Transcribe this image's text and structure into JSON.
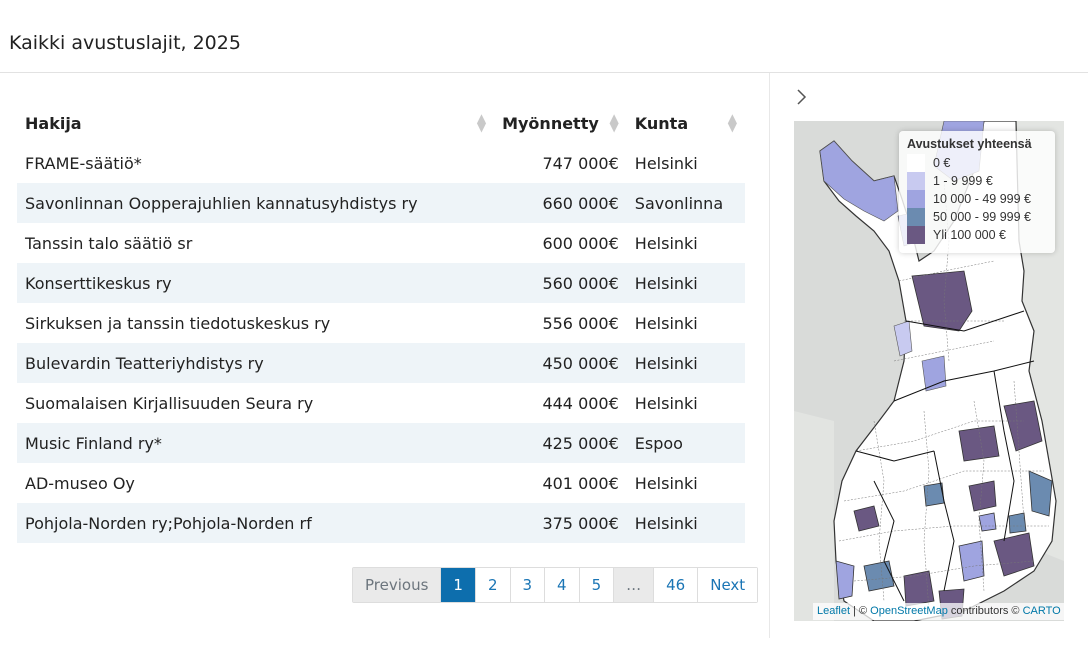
{
  "page": {
    "title": "Kaikki avustuslajit, 2025"
  },
  "table": {
    "columns": [
      "Hakija",
      "Myönnetty",
      "Kunta"
    ],
    "rows": [
      [
        "FRAME-säätiö*",
        "747 000€",
        "Helsinki"
      ],
      [
        "Savonlinnan Oopperajuhlien kannatusyhdistys ry",
        "660 000€",
        "Savonlinna"
      ],
      [
        "Tanssin talo säätiö sr",
        "600 000€",
        "Helsinki"
      ],
      [
        "Konserttikeskus ry",
        "560 000€",
        "Helsinki"
      ],
      [
        "Sirkuksen ja tanssin tiedotuskeskus ry",
        "556 000€",
        "Helsinki"
      ],
      [
        "Bulevardin Teatteriyhdistys ry",
        "450 000€",
        "Helsinki"
      ],
      [
        "Suomalaisen Kirjallisuuden Seura ry",
        "444 000€",
        "Helsinki"
      ],
      [
        "Music Finland ry*",
        "425 000€",
        "Espoo"
      ],
      [
        "AD-museo Oy",
        "401 000€",
        "Helsinki"
      ],
      [
        "Pohjola-Norden ry;Pohjola-Norden rf",
        "375 000€",
        "Helsinki"
      ]
    ]
  },
  "pagination": {
    "previous": "Previous",
    "pages": [
      "1",
      "2",
      "3",
      "4",
      "5",
      "…",
      "46"
    ],
    "active": "1",
    "next": "Next"
  },
  "legend": {
    "title": "Avustukset yhteensä",
    "items": [
      {
        "label": "0 €",
        "color": "#ffffff"
      },
      {
        "label": "1 - 9 999 €",
        "color": "#c8caf0"
      },
      {
        "label": "10 000 - 49 999 €",
        "color": "#9fa4e0"
      },
      {
        "label": "50 000 - 99 999 €",
        "color": "#6b8bb0"
      },
      {
        "label": "Yli 100 000 €",
        "color": "#6a5882"
      }
    ]
  },
  "attribution": {
    "leaflet": "Leaflet",
    "separator": " | © ",
    "osm": "OpenStreetMap",
    "contributors": " contributors © ",
    "carto": "CARTO"
  },
  "icons": {
    "sort": "sort-icon",
    "chevron": "chevron-right-icon"
  }
}
